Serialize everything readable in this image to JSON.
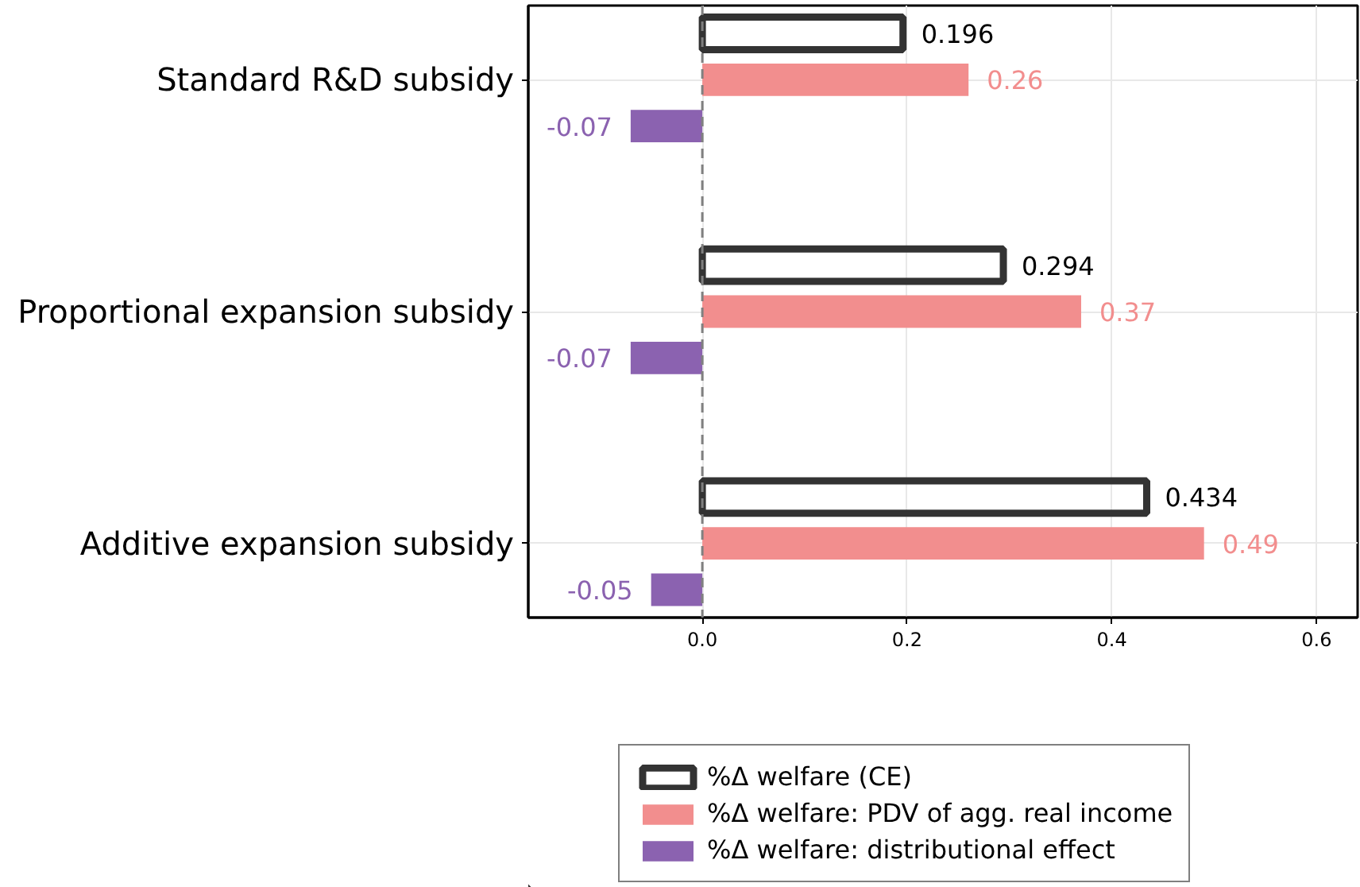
{
  "chart_data": {
    "type": "bar",
    "orientation": "horizontal",
    "categories": [
      "Standard R&D subsidy",
      "Proportional expansion subsidy",
      "Additive expansion subsidy"
    ],
    "series": [
      {
        "name": "%Δ welfare (CE)",
        "color": "#333333",
        "values": [
          0.196,
          0.294,
          0.434
        ]
      },
      {
        "name": "%Δ welfare: PDV of agg. real income",
        "color": "#f28e8e",
        "values": [
          0.26,
          0.37,
          0.49
        ]
      },
      {
        "name": "%Δ welfare: distributional effect",
        "color": "#8b62b0",
        "values": [
          -0.07,
          -0.07,
          -0.05
        ]
      }
    ],
    "xlim": [
      -0.17,
      0.64
    ],
    "xticks": [
      {
        "value": 0,
        "label": "0.0"
      },
      0.2,
      0.4,
      0.6
    ],
    "ref_lines": [
      {
        "axis": "x",
        "value": 0,
        "label": null,
        "color": "#808080",
        "line_style": "dashed"
      }
    ],
    "grid": true,
    "legend": "bottom",
    "data_labels": true
  }
}
